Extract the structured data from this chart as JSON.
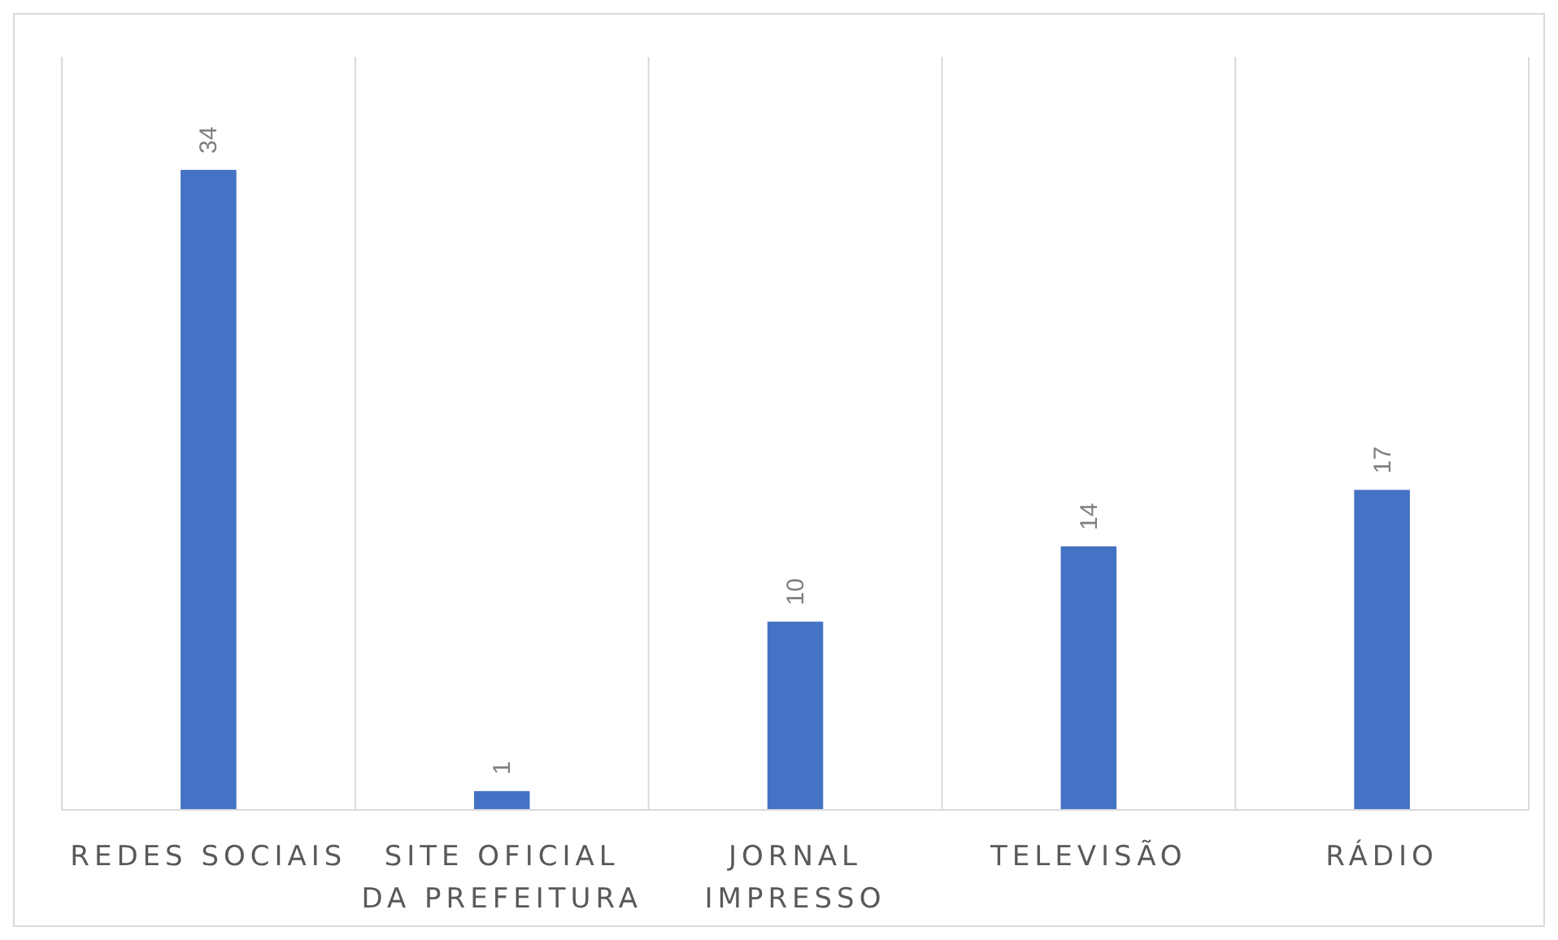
{
  "chart_data": {
    "type": "bar",
    "categories": [
      "REDES SOCIAIS",
      "SITE OFICIAL DA PREFEITURA",
      "JORNAL IMPRESSO",
      "TELEVISÃO",
      "RÁDIO"
    ],
    "values": [
      34,
      1,
      10,
      14,
      17
    ],
    "color": "#4472c4",
    "ylim": [
      0,
      40
    ],
    "data_labels": true,
    "grid": "x"
  }
}
